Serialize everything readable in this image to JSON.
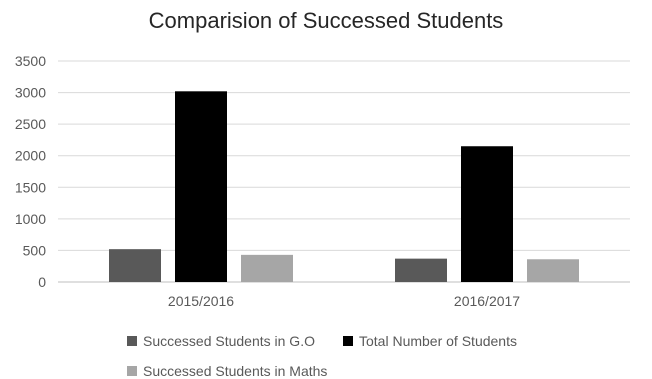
{
  "chart_data": {
    "type": "bar",
    "title": "Comparision of Successed Students",
    "categories": [
      "2015/2016",
      "2016/2017"
    ],
    "series": [
      {
        "name": "Successed Students in G.O",
        "values": [
          520,
          370
        ],
        "color": "#595959"
      },
      {
        "name": "Total Number of Students",
        "values": [
          3020,
          2150
        ],
        "color": "#000000"
      },
      {
        "name": "Successed Students in Maths",
        "values": [
          430,
          360
        ],
        "color": "#a6a6a6"
      }
    ],
    "ylim": [
      0,
      3500
    ],
    "yticks": [
      0,
      500,
      1000,
      1500,
      2000,
      2500,
      3000,
      3500
    ],
    "grid": true,
    "legend_position": "bottom"
  }
}
